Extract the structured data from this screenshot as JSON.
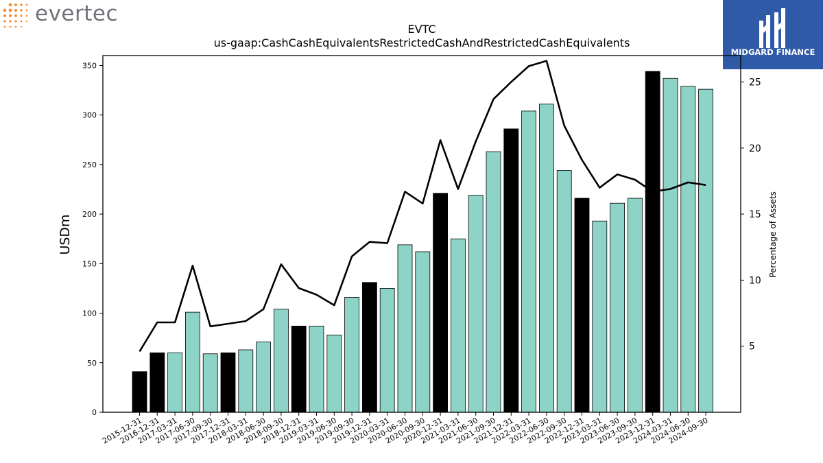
{
  "branding": {
    "left_logo_text": "evertec",
    "right_logo_text": "MIDGARD FINANCE",
    "right_logo_bg": "#2f5aa8",
    "left_logo_dot_color": "#f28a2e"
  },
  "chart_data": {
    "type": "bar",
    "title_line1": "EVTC",
    "title_line2": "us-gaap:CashCashEquivalentsRestrictedCashAndRestrictedCashEquivalents",
    "ylabel": "USDm",
    "ylabel_right": "Percentage of Assets",
    "ylim": [
      0,
      360
    ],
    "ylim_right": [
      0,
      27
    ],
    "yticks": [
      0,
      50,
      100,
      150,
      200,
      250,
      300,
      350
    ],
    "yticks_right": [
      5,
      10,
      15,
      20,
      25
    ],
    "colors": {
      "annual_bar": "#000000",
      "quarter_bar": "#8dd3c7",
      "line": "#000000"
    },
    "categories": [
      "2015-12-31",
      "2016-12-31",
      "2017-03-31",
      "2017-06-30",
      "2017-09-30",
      "2017-12-31",
      "2018-03-31",
      "2018-06-30",
      "2018-09-30",
      "2018-12-31",
      "2019-03-31",
      "2019-06-30",
      "2019-09-30",
      "2019-12-31",
      "2020-03-31",
      "2020-06-30",
      "2020-09-30",
      "2020-12-31",
      "2021-03-31",
      "2021-06-30",
      "2021-09-30",
      "2021-12-31",
      "2022-03-31",
      "2022-06-30",
      "2022-09-30",
      "2022-12-31",
      "2023-03-31",
      "2023-06-30",
      "2023-09-30",
      "2023-12-31",
      "2024-03-31",
      "2024-06-30",
      "2024-09-30"
    ],
    "values": [
      41,
      60,
      60,
      101,
      59,
      60,
      63,
      71,
      104,
      87,
      87,
      78,
      116,
      131,
      125,
      169,
      162,
      221,
      175,
      219,
      263,
      286,
      304,
      311,
      244,
      216,
      193,
      211,
      216,
      344,
      337,
      329,
      326
    ],
    "is_year_end": [
      true,
      true,
      false,
      false,
      false,
      true,
      false,
      false,
      false,
      true,
      false,
      false,
      false,
      true,
      false,
      false,
      false,
      true,
      false,
      false,
      false,
      true,
      false,
      false,
      false,
      true,
      false,
      false,
      false,
      true,
      false,
      false,
      false
    ],
    "pct_assets": [
      4.6,
      6.8,
      6.8,
      11.1,
      6.5,
      6.7,
      6.9,
      7.8,
      11.2,
      9.4,
      8.9,
      8.1,
      11.8,
      12.9,
      12.8,
      16.7,
      15.8,
      20.6,
      16.9,
      20.5,
      23.7,
      25.0,
      26.2,
      26.6,
      21.7,
      19.1,
      17.0,
      18.0,
      17.6,
      16.7,
      16.9,
      17.4,
      17.2
    ]
  }
}
